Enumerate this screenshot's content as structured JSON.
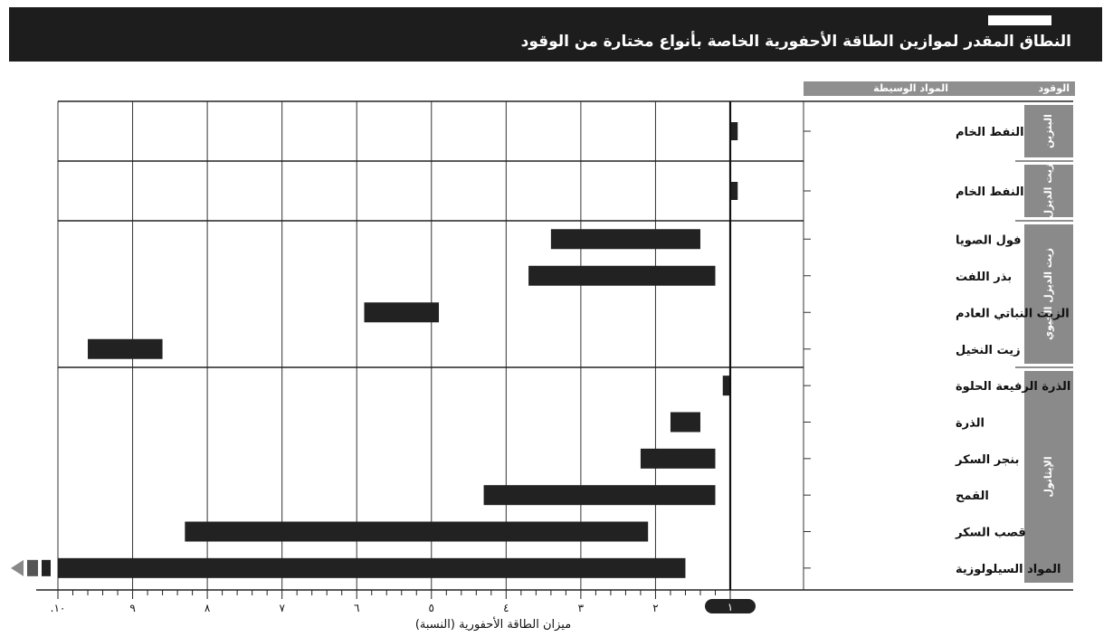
{
  "header": {
    "title": "النطاق المقدر لموازين الطاقة الأحفورية الخاصة بأنواع مختارة من الوقود"
  },
  "columns": {
    "fuel": "الوقود",
    "feedstock": "المواد الوسيطة"
  },
  "chart_data": {
    "type": "bar",
    "orientation": "horizontal-range",
    "title": "النطاق المقدر لموازين الطاقة الأحفورية الخاصة بأنواع مختارة من الوقود",
    "xlabel": "ميزان الطاقة الأحفورية (النسبة)",
    "xlim": [
      0,
      10
    ],
    "x_direction": "right-to-left",
    "tick_labels": [
      "١",
      "٢",
      "٣",
      "٤",
      "٥",
      "٦",
      "٧",
      "٨",
      "٩",
      "١٠"
    ],
    "tick_label_text": [
      "١",
      "٢",
      "٣",
      "٤",
      "٥",
      "٦",
      "٧",
      "٨",
      "٩",
      ".١٠"
    ],
    "reference_line": 1,
    "groups": [
      {
        "label": "البنزين",
        "rows": [
          {
            "label": "النفط الخام",
            "range": [
              0.9,
              1.0
            ]
          }
        ]
      },
      {
        "label": "زيت الديزل",
        "rows": [
          {
            "label": "النفط الخام",
            "range": [
              0.9,
              1.0
            ]
          }
        ]
      },
      {
        "label": "زيت الديزل الحيوي",
        "rows": [
          {
            "label": "فول الصويا",
            "range": [
              1.4,
              3.4
            ]
          },
          {
            "label": "بذر اللفت",
            "range": [
              1.2,
              3.7
            ]
          },
          {
            "label": "الزيت النباتي العادم",
            "range": [
              4.9,
              5.9
            ]
          },
          {
            "label": "زيت النخيل",
            "range": [
              8.6,
              9.6
            ]
          }
        ]
      },
      {
        "label": "الإيثانول",
        "rows": [
          {
            "label": "الذرة الرفيعة الحلوة",
            "range": [
              1.0,
              1.1
            ]
          },
          {
            "label": "الذرة",
            "range": [
              1.4,
              1.8
            ]
          },
          {
            "label": "بنجر السكر",
            "range": [
              1.2,
              2.2
            ]
          },
          {
            "label": "القمح",
            "range": [
              1.2,
              4.3
            ]
          },
          {
            "label": "قصب السكر",
            "range": [
              2.1,
              8.3
            ]
          },
          {
            "label": "المواد السيلولوزية",
            "range": [
              1.6,
              10.0
            ],
            "extends_beyond_axis": true
          }
        ]
      }
    ],
    "grid": true,
    "colors": {
      "bar": "#222222",
      "group_band": "#8a8a8a",
      "header": "#1d1d1d"
    }
  }
}
